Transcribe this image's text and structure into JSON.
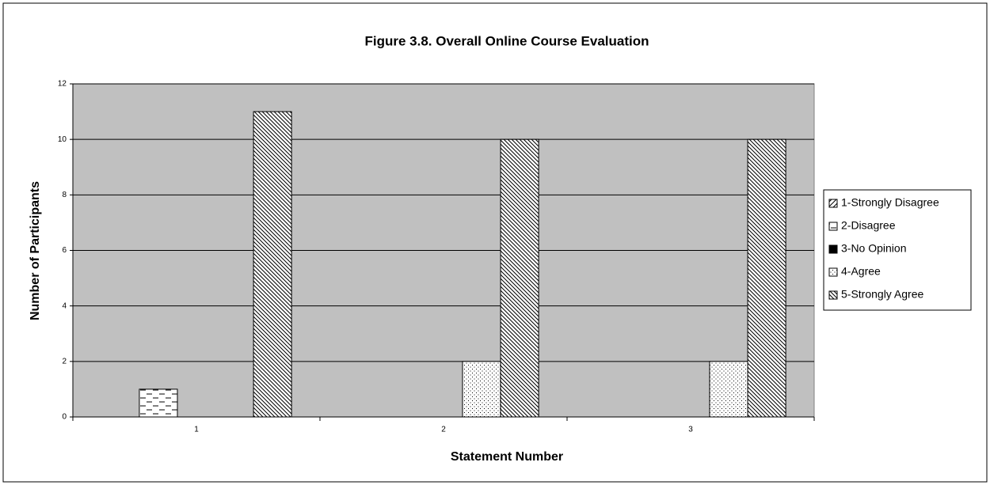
{
  "chart_data": {
    "type": "bar",
    "title": "Figure 3.8.  Overall Online Course Evaluation",
    "x_label": "Statement Number",
    "y_label": "Number of  Participants",
    "categories": [
      "1",
      "2",
      "3"
    ],
    "series": [
      {
        "name": "1-Strongly Disagree",
        "color": "#000000",
        "pattern": "diagonal-up",
        "values": [
          0,
          0,
          0
        ]
      },
      {
        "name": "2-Disagree",
        "color": "#000000",
        "pattern": "dashes",
        "values": [
          1,
          0,
          0
        ]
      },
      {
        "name": "3-No Opinion",
        "color": "#000000",
        "pattern": "solid",
        "values": [
          0,
          0,
          0
        ]
      },
      {
        "name": "4-Agree",
        "color": "#000000",
        "pattern": "dots",
        "values": [
          0,
          2,
          2
        ]
      },
      {
        "name": "5-Strongly Agree",
        "color": "#000000",
        "pattern": "diagonal-down",
        "values": [
          11,
          10,
          10
        ]
      }
    ],
    "ylim": [
      0,
      12
    ],
    "yticks": [
      0,
      2,
      4,
      6,
      8,
      10,
      12
    ],
    "grid": true,
    "legend": "right"
  }
}
